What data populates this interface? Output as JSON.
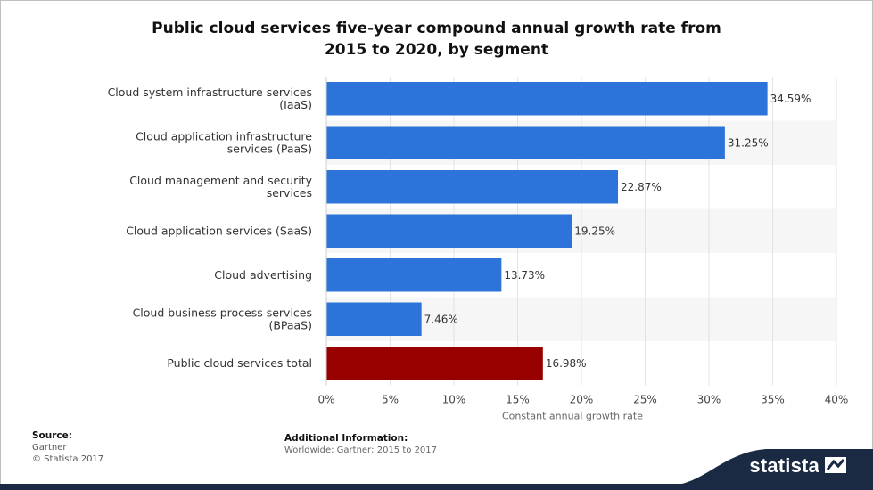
{
  "title_line1": "Public cloud services five-year compound annual growth rate from",
  "title_line2": "2015 to 2020, by segment",
  "chart_data": {
    "type": "bar",
    "orientation": "horizontal",
    "categories": [
      [
        "Cloud system infrastructure services",
        "(IaaS)"
      ],
      [
        "Cloud application infrastructure",
        "services (PaaS)"
      ],
      [
        "Cloud management and security",
        "services"
      ],
      [
        "Cloud application services (SaaS)"
      ],
      [
        "Cloud advertising"
      ],
      [
        "Cloud business process services",
        "(BPaaS)"
      ],
      [
        "Public cloud services total"
      ]
    ],
    "values": [
      34.59,
      31.25,
      22.87,
      19.25,
      13.73,
      7.46,
      16.98
    ],
    "value_labels": [
      "34.59%",
      "31.25%",
      "22.87%",
      "19.25%",
      "13.73%",
      "7.46%",
      "16.98%"
    ],
    "colors": [
      "#2d74da",
      "#2d74da",
      "#2d74da",
      "#2d74da",
      "#2d74da",
      "#2d74da",
      "#980000"
    ],
    "xlim": [
      0,
      40
    ],
    "xticks": [
      0,
      5,
      10,
      15,
      20,
      25,
      30,
      35,
      40
    ],
    "xtick_labels": [
      "0%",
      "5%",
      "10%",
      "15%",
      "20%",
      "25%",
      "30%",
      "35%",
      "40%"
    ],
    "xlabel": "Constant annual growth rate",
    "grid": true
  },
  "source": {
    "heading": "Source:",
    "lines": [
      "Gartner",
      "© Statista 2017"
    ]
  },
  "additional_info": {
    "heading": "Additional Information:",
    "text": "Worldwide; Gartner; 2015 to 2017"
  },
  "brand": {
    "name": "statista",
    "colors": {
      "band": "#1a2a43",
      "accent": "#2d74da",
      "highlight": "#980000"
    }
  }
}
